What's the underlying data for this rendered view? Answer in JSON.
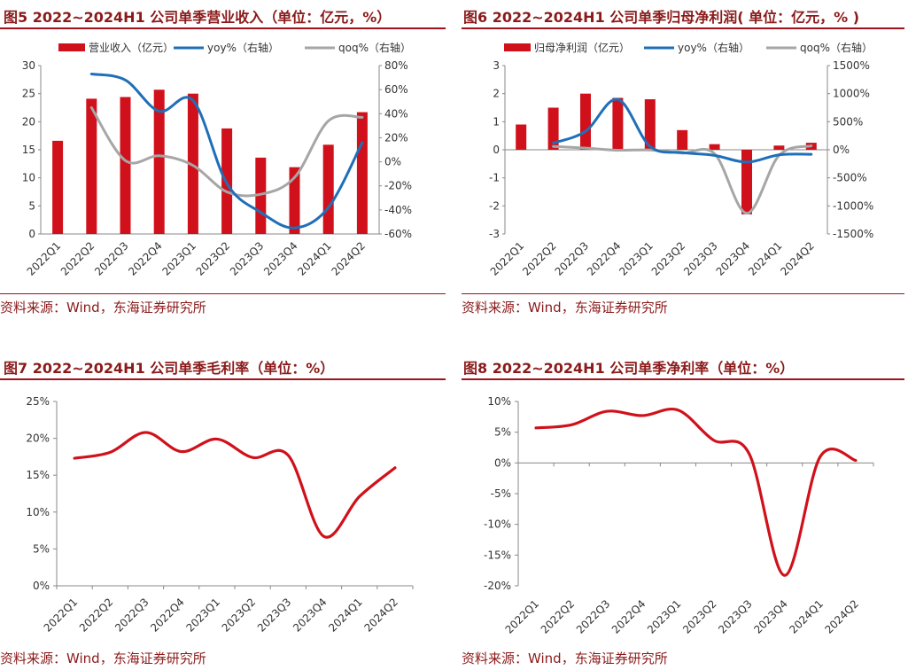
{
  "panels": [
    {
      "title": "图5  2022~2024H1 公司单季营业收入（单位：亿元，%）",
      "source": "资料来源：Wind，东海证券研究所"
    },
    {
      "title": "图6  2022~2024H1 公司单季归母净利润( 单位：亿元，% )",
      "source": "资料来源：Wind，东海证券研究所"
    },
    {
      "title": "图7  2022~2024H1 公司单季毛利率（单位：%）",
      "source": "资料来源：Wind，东海证券研究所"
    },
    {
      "title": "图8  2022~2024H1 公司单季净利率（单位：%）",
      "source": "资料来源：Wind，东海证券研究所"
    }
  ],
  "chart_data": [
    {
      "type": "bar",
      "categories": [
        "2022Q1",
        "2022Q2",
        "2022Q3",
        "2022Q4",
        "2023Q1",
        "2023Q2",
        "2023Q3",
        "2023Q4",
        "2024Q1",
        "2024Q2"
      ],
      "series": [
        {
          "name": "营业收入（亿元）",
          "type": "bar",
          "axis": "left",
          "values": [
            16.6,
            24.1,
            24.4,
            25.7,
            25.0,
            18.8,
            13.6,
            11.9,
            15.9,
            21.7
          ]
        },
        {
          "name": "yoy%（右轴）",
          "type": "line",
          "axis": "right",
          "values": [
            null,
            73,
            68,
            42,
            51,
            -18,
            -42,
            -55,
            -38,
            16
          ]
        },
        {
          "name": "qoq%（右轴）",
          "type": "line",
          "axis": "right",
          "values": [
            null,
            45,
            1,
            5,
            -3,
            -25,
            -27,
            -13,
            34,
            37
          ]
        }
      ],
      "left_axis": {
        "ylim": [
          0,
          30
        ],
        "ticks": [
          0,
          5,
          10,
          15,
          20,
          25,
          30
        ],
        "labels": [
          "0",
          "5",
          "10",
          "15",
          "20",
          "25",
          "30"
        ]
      },
      "right_axis": {
        "ylim": [
          -60,
          80
        ],
        "ticks": [
          -60,
          -40,
          -20,
          0,
          20,
          40,
          60,
          80
        ],
        "labels": [
          "-60%",
          "-40%",
          "-20%",
          "0%",
          "20%",
          "40%",
          "60%",
          "80%"
        ]
      },
      "legend_position": "top",
      "colors": {
        "bar": "#D0111B",
        "yoy": "#1F6FB8",
        "qoq": "#A6A6A6"
      }
    },
    {
      "type": "bar",
      "categories": [
        "2022Q1",
        "2022Q2",
        "2022Q3",
        "2022Q4",
        "2023Q1",
        "2023Q2",
        "2023Q3",
        "2023Q4",
        "2024Q1",
        "2024Q2"
      ],
      "series": [
        {
          "name": "归母净利润（亿元）",
          "type": "bar",
          "axis": "left",
          "values": [
            0.9,
            1.5,
            2.0,
            1.85,
            1.8,
            0.7,
            0.2,
            -2.3,
            0.15,
            0.25
          ]
        },
        {
          "name": "yoy%（右轴）",
          "type": "line",
          "axis": "right",
          "values": [
            null,
            120,
            330,
            900,
            60,
            -50,
            -100,
            -220,
            -90,
            -80
          ]
        },
        {
          "name": "qoq%（右轴）",
          "type": "line",
          "axis": "right",
          "values": [
            null,
            60,
            30,
            -8,
            -3,
            -60,
            -70,
            -1130,
            -100,
            70
          ]
        }
      ],
      "left_axis": {
        "ylim": [
          -3,
          3
        ],
        "ticks": [
          -3,
          -2,
          -1,
          0,
          1,
          2,
          3
        ],
        "labels": [
          "-3",
          "-2",
          "-1",
          "0",
          "1",
          "2",
          "3"
        ]
      },
      "right_axis": {
        "ylim": [
          -1500,
          1500
        ],
        "ticks": [
          -1500,
          -1000,
          -500,
          0,
          500,
          1000,
          1500
        ],
        "labels": [
          "-1500%",
          "-1000%",
          "-500%",
          "0%",
          "500%",
          "1000%",
          "1500%"
        ]
      },
      "legend_position": "top",
      "colors": {
        "bar": "#D0111B",
        "yoy": "#1F6FB8",
        "qoq": "#A6A6A6"
      }
    },
    {
      "type": "line",
      "categories": [
        "2022Q1",
        "2022Q2",
        "2022Q3",
        "2022Q4",
        "2023Q1",
        "2023Q2",
        "2023Q3",
        "2023Q4",
        "2024Q1",
        "2024Q2"
      ],
      "series": [
        {
          "values": [
            17.3,
            18.1,
            20.8,
            18.2,
            19.9,
            17.4,
            17.7,
            6.7,
            12.1,
            16.0
          ]
        }
      ],
      "ylim": [
        0,
        25
      ],
      "ticks": [
        0,
        5,
        10,
        15,
        20,
        25
      ],
      "tick_labels": [
        "0%",
        "5%",
        "10%",
        "15%",
        "20%",
        "25%"
      ],
      "colors": {
        "line": "#D0111B"
      }
    },
    {
      "type": "line",
      "categories": [
        "2022Q1",
        "2022Q2",
        "2022Q3",
        "2022Q4",
        "2023Q1",
        "2023Q2",
        "2023Q3",
        "2023Q4",
        "2024Q1",
        "2024Q2"
      ],
      "series": [
        {
          "values": [
            5.7,
            6.2,
            8.4,
            7.7,
            8.6,
            3.7,
            1.5,
            -18.3,
            1.0,
            0.4
          ]
        }
      ],
      "ylim": [
        -20,
        10
      ],
      "ticks": [
        -20,
        -15,
        -10,
        -5,
        0,
        5,
        10
      ],
      "tick_labels": [
        "-20%",
        "-15%",
        "-10%",
        "-5%",
        "0%",
        "5%",
        "10%"
      ],
      "colors": {
        "line": "#D0111B"
      }
    }
  ]
}
